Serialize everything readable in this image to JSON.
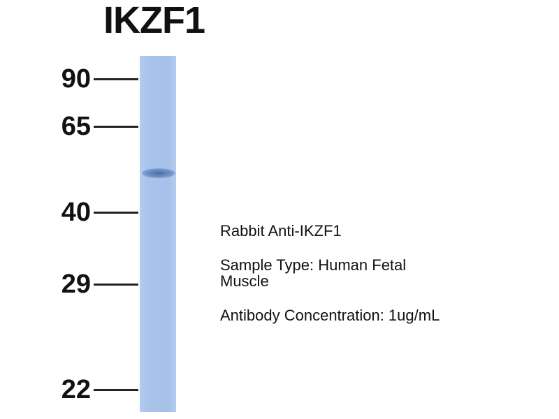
{
  "title": "IKZF1",
  "markers": [
    {
      "label": "90"
    },
    {
      "label": "65"
    },
    {
      "label": "40"
    },
    {
      "label": "29"
    },
    {
      "label": "22"
    }
  ],
  "info": {
    "antibody": "Rabbit Anti-IKZF1",
    "sample_line1": "Sample Type: Human Fetal",
    "sample_line2": "Muscle",
    "concentration": "Antibody Concentration: 1ug/mL"
  },
  "colors": {
    "lane": "#a6c1e9",
    "band": "#4a6fa8"
  }
}
